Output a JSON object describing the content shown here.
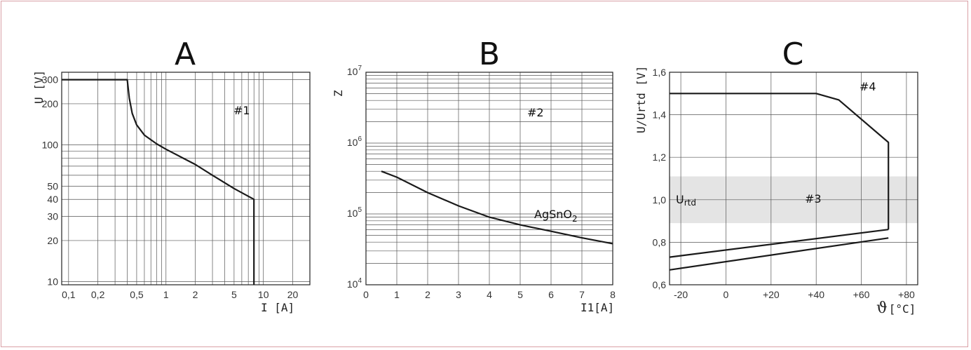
{
  "chart_data": [
    {
      "type": "line",
      "panel": "A",
      "title": "A",
      "xlabel": "I [A]",
      "ylabel": "U [V]",
      "xscale": "log",
      "yscale": "log",
      "xlim": [
        0.085,
        30
      ],
      "ylim": [
        9.5,
        340
      ],
      "xticks": [
        {
          "value": 0.1,
          "label": "0,1"
        },
        {
          "value": 0.2,
          "label": "0,2"
        },
        {
          "value": 0.5,
          "label": "0,5"
        },
        {
          "value": 1,
          "label": "1"
        },
        {
          "value": 2,
          "label": "2"
        },
        {
          "value": 5,
          "label": "5"
        },
        {
          "value": 10,
          "label": "10"
        },
        {
          "value": 20,
          "label": "20"
        }
      ],
      "yticks": [
        {
          "value": 10,
          "label": "10"
        },
        {
          "value": 20,
          "label": "20"
        },
        {
          "value": 30,
          "label": "30"
        },
        {
          "value": 40,
          "label": "40"
        },
        {
          "value": 50,
          "label": "50"
        },
        {
          "value": 100,
          "label": "100"
        },
        {
          "value": 200,
          "label": "200"
        },
        {
          "value": 300,
          "label": "300"
        }
      ],
      "annotation": "#1",
      "series": [
        {
          "x": [
            0.085,
            0.4,
            0.42,
            0.45,
            0.5,
            0.6,
            0.8,
            1,
            1.5,
            2,
            3,
            5,
            8,
            8,
            8
          ],
          "y": [
            300,
            300,
            220,
            170,
            140,
            118,
            102,
            93,
            80,
            72,
            60,
            48,
            40,
            20,
            9.5
          ]
        }
      ]
    },
    {
      "type": "line",
      "panel": "B",
      "title": "B",
      "xlabel": "I1[A]",
      "ylabel": "Z",
      "yscale": "log",
      "xlim": [
        0,
        8
      ],
      "ylim": [
        10000,
        10000000
      ],
      "xticks": [
        {
          "value": 0,
          "label": "0"
        },
        {
          "value": 1,
          "label": "1"
        },
        {
          "value": 2,
          "label": "2"
        },
        {
          "value": 3,
          "label": "3"
        },
        {
          "value": 4,
          "label": "4"
        },
        {
          "value": 5,
          "label": "5"
        },
        {
          "value": 6,
          "label": "6"
        },
        {
          "value": 7,
          "label": "7"
        },
        {
          "value": 8,
          "label": "8"
        }
      ],
      "yticks": [
        {
          "value": 10000,
          "base": "10",
          "exp": "4"
        },
        {
          "value": 100000,
          "base": "10",
          "exp": "5"
        },
        {
          "value": 1000000,
          "base": "10",
          "exp": "6"
        },
        {
          "value": 10000000,
          "base": "10",
          "exp": "7"
        }
      ],
      "annotation": "#2",
      "series": [
        {
          "label_main": "AgSnO",
          "label_sub": "2",
          "x": [
            0.5,
            1,
            2,
            3,
            4,
            5,
            6,
            7,
            8
          ],
          "y": [
            400000,
            330000,
            200000,
            130000,
            90000,
            70000,
            57000,
            46000,
            38000
          ]
        }
      ]
    },
    {
      "type": "line",
      "panel": "C",
      "title": "C",
      "xlabel_main": "ϑ",
      "xlabel_unit": "[°C]",
      "ylabel": "U/Urtd [V]",
      "xlim": [
        -25,
        85
      ],
      "ylim": [
        0.6,
        1.6
      ],
      "xticks": [
        {
          "value": -20,
          "label": "-20"
        },
        {
          "value": 0,
          "label": "0"
        },
        {
          "value": 20,
          "label": "+20"
        },
        {
          "value": 40,
          "label": "+40"
        },
        {
          "value": 60,
          "label": "+60"
        },
        {
          "value": 80,
          "label": "+80"
        }
      ],
      "yticks": [
        {
          "value": 0.6,
          "label": "0,6"
        },
        {
          "value": 0.8,
          "label": "0,8"
        },
        {
          "value": 1.0,
          "label": "1,0"
        },
        {
          "value": 1.2,
          "label": "1,2"
        },
        {
          "value": 1.4,
          "label": "1,4"
        },
        {
          "value": 1.6,
          "label": "1,6"
        }
      ],
      "band": {
        "y": [
          0.89,
          1.11
        ],
        "label_main": "U",
        "label_sub": "rtd",
        "annotation": "#3"
      },
      "annotation": "#4",
      "series": [
        {
          "x": [
            -25,
            40,
            50,
            72,
            72
          ],
          "y": [
            1.5,
            1.5,
            1.47,
            1.27,
            0.86
          ]
        },
        {
          "x": [
            -25,
            72
          ],
          "y": [
            0.73,
            0.86
          ]
        },
        {
          "x": [
            -25,
            72
          ],
          "y": [
            0.67,
            0.82
          ]
        }
      ]
    }
  ]
}
